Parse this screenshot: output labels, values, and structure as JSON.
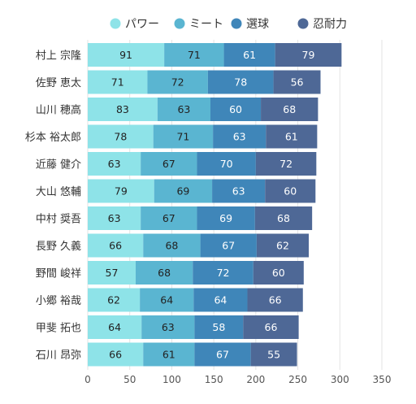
{
  "chart_data": {
    "type": "bar",
    "orientation": "horizontal",
    "stacked": true,
    "categories": [
      "村上 宗隆",
      "佐野 恵太",
      "山川 穂高",
      "杉本 裕太郎",
      "近藤 健介",
      "大山 悠輔",
      "中村 奨吾",
      "長野 久義",
      "野間 峻祥",
      "小郷 裕哉",
      "甲斐 拓也",
      "石川 昂弥"
    ],
    "series": [
      {
        "name": "パワー",
        "color": "#8ee3e8",
        "values": [
          91,
          71,
          83,
          78,
          63,
          79,
          63,
          66,
          57,
          62,
          64,
          66
        ]
      },
      {
        "name": "ミート",
        "color": "#5ab5d1",
        "values": [
          71,
          72,
          63,
          71,
          67,
          69,
          67,
          68,
          68,
          64,
          63,
          61
        ]
      },
      {
        "name": "選球",
        "color": "#3f86b9",
        "values": [
          61,
          78,
          60,
          63,
          70,
          63,
          69,
          67,
          72,
          64,
          58,
          67
        ]
      },
      {
        "name": "忍耐力",
        "color": "#4e6896",
        "values": [
          79,
          56,
          68,
          61,
          72,
          60,
          68,
          62,
          60,
          66,
          66,
          55
        ]
      }
    ],
    "xlim": [
      0,
      350
    ],
    "xticks": [
      "0",
      "50",
      "100",
      "150",
      "200",
      "250",
      "300",
      "350"
    ],
    "grid": true,
    "legend_position": "top"
  }
}
